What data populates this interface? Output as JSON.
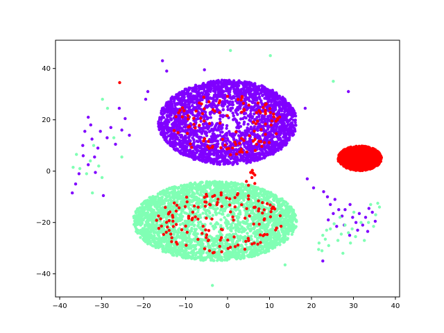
{
  "chart_data": {
    "type": "scatter",
    "title": "",
    "xlabel": "",
    "ylabel": "",
    "xlim": [
      -41,
      41
    ],
    "ylim": [
      -49,
      51
    ],
    "grid": false,
    "legend": "none",
    "xticks": [
      -40,
      -30,
      -20,
      -10,
      0,
      10,
      20,
      30,
      40
    ],
    "yticks": [
      -40,
      -20,
      0,
      20,
      40
    ],
    "xtick_labels": [
      "−40",
      "−30",
      "−20",
      "−10",
      "0",
      "10",
      "20",
      "30",
      "40"
    ],
    "ytick_labels": [
      "−40",
      "−20",
      "0",
      "20",
      "40"
    ],
    "colors": {
      "purple": "#8000ff",
      "mint": "#80ffb4",
      "red": "#ff0000"
    },
    "series": [
      {
        "color": "#8000ff",
        "clusters": [
          {
            "cx": 0,
            "cy": 19,
            "rx": 16.5,
            "ry": 16.5,
            "n": 2600
          }
        ],
        "points": [
          [
            -15.5,
            43
          ],
          [
            -14.5,
            39
          ],
          [
            -5.5,
            39.5
          ],
          [
            -19.5,
            28
          ],
          [
            -19.0,
            31
          ],
          [
            -25.8,
            24.5
          ],
          [
            -24.4,
            20.5
          ],
          [
            -25.2,
            16
          ],
          [
            -27.8,
            17
          ],
          [
            -28.7,
            13
          ],
          [
            -30.3,
            15.5
          ],
          [
            -32.3,
            12.5
          ],
          [
            -33.2,
            21
          ],
          [
            -32.6,
            18
          ],
          [
            -34.5,
            10
          ],
          [
            -30.9,
            9
          ],
          [
            -31.7,
            5.5
          ],
          [
            -33.2,
            2.5
          ],
          [
            -34.4,
            6
          ],
          [
            -35.4,
            -1
          ],
          [
            -36.2,
            -5
          ],
          [
            -37.0,
            -8.5
          ],
          [
            -29.6,
            -9.5
          ],
          [
            -26.7,
            10.5
          ],
          [
            -23.4,
            14
          ],
          [
            -31.5,
            -0.5
          ],
          [
            -34.0,
            15.5
          ],
          [
            28.8,
            31
          ],
          [
            18.5,
            24.5
          ],
          [
            19.0,
            -3
          ],
          [
            20.5,
            -6.5
          ],
          [
            22.9,
            -8
          ],
          [
            23.8,
            -10
          ],
          [
            24.5,
            -13
          ],
          [
            25.6,
            -11
          ],
          [
            26.5,
            -15
          ],
          [
            27.3,
            -17.5
          ],
          [
            28.0,
            -15
          ],
          [
            29.2,
            -13
          ],
          [
            29.8,
            -18
          ],
          [
            30.6,
            -20
          ],
          [
            31.4,
            -16.5
          ],
          [
            32.2,
            -21
          ],
          [
            32.9,
            -18
          ],
          [
            33.7,
            -14.5
          ],
          [
            34.5,
            -16
          ],
          [
            35.2,
            -19.5
          ],
          [
            22.7,
            -35
          ],
          [
            25.2,
            -16.5
          ],
          [
            27.8,
            -21
          ],
          [
            31.0,
            -23
          ],
          [
            29.1,
            -25
          ],
          [
            33.4,
            -23.5
          ],
          [
            24.0,
            -19
          ],
          [
            26.0,
            -21.5
          ]
        ]
      },
      {
        "color": "#80ffb4",
        "clusters": [
          {
            "cx": -3,
            "cy": -19.5,
            "rx": 19.5,
            "ry": 15.5,
            "n": 3000
          }
        ],
        "points": [
          [
            0.7,
            47
          ],
          [
            10.2,
            45
          ],
          [
            25.2,
            35
          ],
          [
            -29.8,
            28
          ],
          [
            -28.6,
            24.5
          ],
          [
            -36.0,
            6.5
          ],
          [
            -36.8,
            1.5
          ],
          [
            -35.2,
            1
          ],
          [
            -33.6,
            -1
          ],
          [
            -32.7,
            4
          ],
          [
            -31.9,
            10
          ],
          [
            -30.7,
            2
          ],
          [
            -29.9,
            -2.5
          ],
          [
            -32.2,
            -8.5
          ],
          [
            -25.2,
            5.5
          ],
          [
            -27.1,
            13
          ],
          [
            13.7,
            -36.5
          ],
          [
            -3.6,
            -44.5
          ],
          [
            21.8,
            -28
          ],
          [
            22.7,
            -25
          ],
          [
            23.6,
            -23
          ],
          [
            24.5,
            -22.5
          ],
          [
            25.4,
            -20.5
          ],
          [
            26.3,
            -27
          ],
          [
            27.1,
            -24.5
          ],
          [
            28.0,
            -21
          ],
          [
            28.8,
            -24
          ],
          [
            29.7,
            -22.5
          ],
          [
            30.5,
            -25.5
          ],
          [
            31.8,
            -20
          ],
          [
            33.6,
            -20
          ],
          [
            35.3,
            -17
          ],
          [
            36.2,
            -14
          ],
          [
            34.8,
            -21.5
          ],
          [
            22.5,
            -31
          ],
          [
            24.1,
            -29
          ],
          [
            27.5,
            -32
          ],
          [
            30.1,
            -16
          ],
          [
            32.6,
            -27
          ],
          [
            34.1,
            -13
          ],
          [
            35.8,
            -12.5
          ],
          [
            26.8,
            -18
          ],
          [
            21.7,
            -30.5
          ],
          [
            29.3,
            -28
          ],
          [
            23.3,
            -26.5
          ]
        ]
      },
      {
        "color": "#ff0000",
        "clusters": [
          {
            "cx": 31.5,
            "cy": 5,
            "rx": 5.2,
            "ry": 4.8,
            "n": 1400,
            "dense": true
          },
          {
            "cx": 0,
            "cy": 18,
            "rx": 13,
            "ry": 12,
            "n": 110
          },
          {
            "cx": -2,
            "cy": -20,
            "rx": 15,
            "ry": 12,
            "n": 140
          }
        ],
        "points": [
          [
            -25.7,
            34.5
          ],
          [
            5.5,
            -0.5
          ],
          [
            6.5,
            -1.5
          ],
          [
            5.8,
            -2.5
          ],
          [
            6.1,
            -0.8
          ],
          [
            5.9,
            0.3
          ],
          [
            4.5,
            -4
          ],
          [
            6.5,
            -4.8
          ],
          [
            5.0,
            -5.5
          ]
        ]
      }
    ]
  }
}
